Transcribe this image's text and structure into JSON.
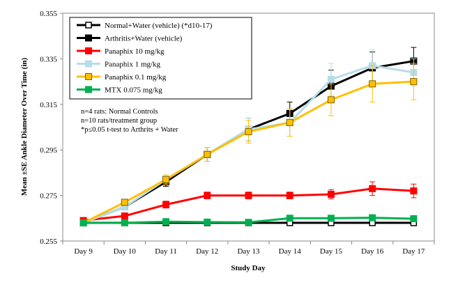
{
  "chart_data": {
    "type": "line",
    "title": "",
    "xlabel": "Study Day",
    "ylabel": "Mean ±SE Ankle Diameter Over Time (in)",
    "categories": [
      "Day 9",
      "Day 10",
      "Day 11",
      "Day 12",
      "Day 13",
      "Day 14",
      "Day 15",
      "Day 16",
      "Day 17"
    ],
    "ylim": [
      0.255,
      0.355
    ],
    "yticks": [
      "0.255",
      "0.275",
      "0.295",
      "0.315",
      "0.335",
      "0.355"
    ],
    "ytick_values": [
      0.255,
      0.275,
      0.295,
      0.315,
      0.335,
      0.355
    ],
    "grid": false,
    "legend_position": "top-left",
    "series": [
      {
        "name": "Normal+Water (vehicle) (*d10-17)",
        "color": "#000000",
        "marker": "open-square",
        "values": [
          0.263,
          0.263,
          0.263,
          0.263,
          0.263,
          0.263,
          0.263,
          0.263,
          0.263
        ],
        "errors": [
          0.0003,
          0.0003,
          0.0003,
          0.0003,
          0.0003,
          0.0003,
          0.0003,
          0.0003,
          0.0003
        ]
      },
      {
        "name": "Arthritis+Water (vehicle)",
        "color": "#000000",
        "marker": "filled-square",
        "values": [
          0.263,
          0.27,
          0.281,
          0.293,
          0.304,
          0.311,
          0.323,
          0.331,
          0.334
        ],
        "errors": [
          0.0005,
          0.001,
          0.002,
          0.003,
          0.005,
          0.005,
          0.007,
          0.007,
          0.006
        ]
      },
      {
        "name": "Panaphix 10 mg/kg",
        "color": "#ff0000",
        "marker": "filled-square",
        "values": [
          0.264,
          0.266,
          0.271,
          0.275,
          0.275,
          0.275,
          0.2755,
          0.278,
          0.277
        ],
        "errors": [
          0.0005,
          0.001,
          0.0015,
          0.0015,
          0.0015,
          0.0015,
          0.002,
          0.003,
          0.003
        ]
      },
      {
        "name": "Panaphix 1 mg/kg",
        "color": "#b7dde8",
        "marker": "filled-square",
        "values": [
          0.263,
          0.27,
          0.282,
          0.293,
          0.304,
          0.307,
          0.326,
          0.332,
          0.329
        ],
        "errors": [
          0.0005,
          0.001,
          0.002,
          0.003,
          0.005,
          0.006,
          0.007,
          0.007,
          0.006
        ]
      },
      {
        "name": "Panaphix 0.1 mg/kg",
        "color": "#ffc000",
        "marker": "filled-square",
        "values": [
          0.263,
          0.272,
          0.282,
          0.293,
          0.303,
          0.307,
          0.317,
          0.324,
          0.325
        ],
        "errors": [
          0.0005,
          0.001,
          0.002,
          0.003,
          0.005,
          0.006,
          0.007,
          0.008,
          0.008
        ]
      },
      {
        "name": "MTX 0.075 mg/kg",
        "color": "#00b050",
        "marker": "filled-square",
        "values": [
          0.263,
          0.263,
          0.2635,
          0.2633,
          0.2632,
          0.265,
          0.265,
          0.2652,
          0.2648
        ],
        "errors": [
          0.0003,
          0.0003,
          0.0004,
          0.0004,
          0.0004,
          0.0005,
          0.0005,
          0.0005,
          0.0005
        ]
      }
    ],
    "annotations": [
      "n=4 rats: Normal Controls",
      "n=10 rats/treatment  group",
      "*p≤0.05 t-test to Arthrits + Water"
    ]
  }
}
